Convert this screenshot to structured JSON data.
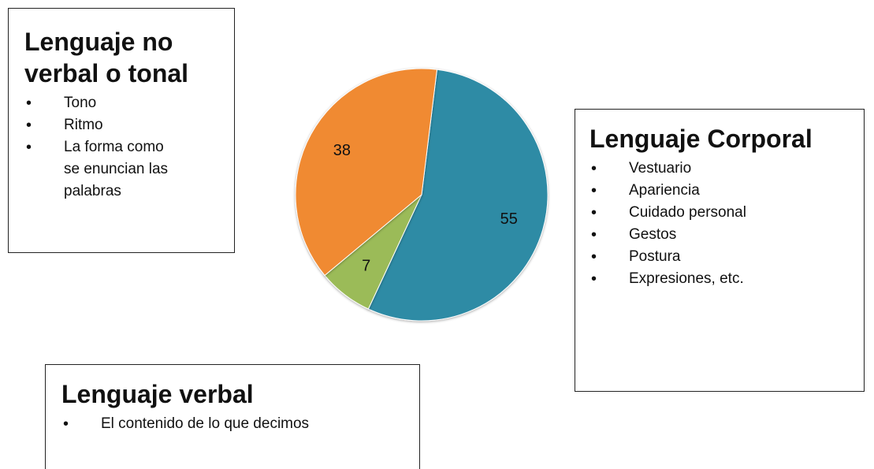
{
  "chart_data": {
    "type": "pie",
    "values": [
      55,
      7,
      38
    ],
    "colors": [
      "#2f8ba5",
      "#9bbb59",
      "#f08a32"
    ]
  },
  "boxes": [
    {
      "title": "Lenguaje no verbal o tonal",
      "items": [
        "Tono",
        "Ritmo",
        "La forma como se enuncian las palabras"
      ]
    },
    {
      "title": "Lenguaje Corporal",
      "items": [
        "Vestuario",
        "Apariencia",
        "Cuidado personal",
        "Gestos",
        "Postura",
        "Expresiones, etc."
      ]
    },
    {
      "title": "Lenguaje verbal",
      "items": [
        "El contenido de lo que decimos"
      ]
    }
  ]
}
